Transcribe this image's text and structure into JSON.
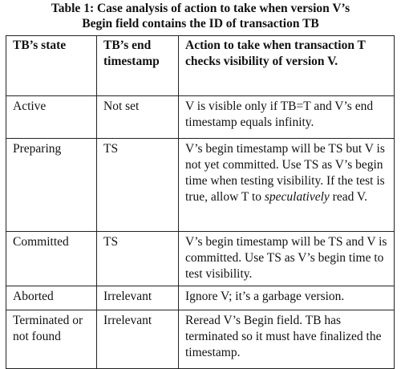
{
  "caption": {
    "line1": "Table 1: Case analysis of action to take when version V’s",
    "line2": "Begin field contains the ID of transaction TB"
  },
  "table": {
    "headers": [
      "TB’s state",
      "TB’s end timestamp",
      "Action to take when transaction T checks visibility of version V."
    ],
    "rows": [
      {
        "state": "Active",
        "end_ts": "Not set",
        "action": "V is visible only if TB=T and V’s end timestamp equals infinity."
      },
      {
        "state": "Preparing",
        "end_ts": "TS",
        "action_before": "V’s begin timestamp will be TS but V is not yet committed. Use TS as V’s begin time when testing visibility. If the test is true, allow T to ",
        "action_italic": "speculatively",
        "action_after": " read V."
      },
      {
        "state": "Committed",
        "end_ts": "TS",
        "action": "V’s begin timestamp will be TS and V is committed. Use TS as V’s begin time to test visibility."
      },
      {
        "state": "Aborted",
        "end_ts": "Irrelevant",
        "action": "Ignore V; it’s a garbage version."
      },
      {
        "state": "Terminated or not found",
        "end_ts": "Irrelevant",
        "action": "Reread V’s Begin field. TB has terminated so it must have finalized the timestamp."
      }
    ]
  }
}
